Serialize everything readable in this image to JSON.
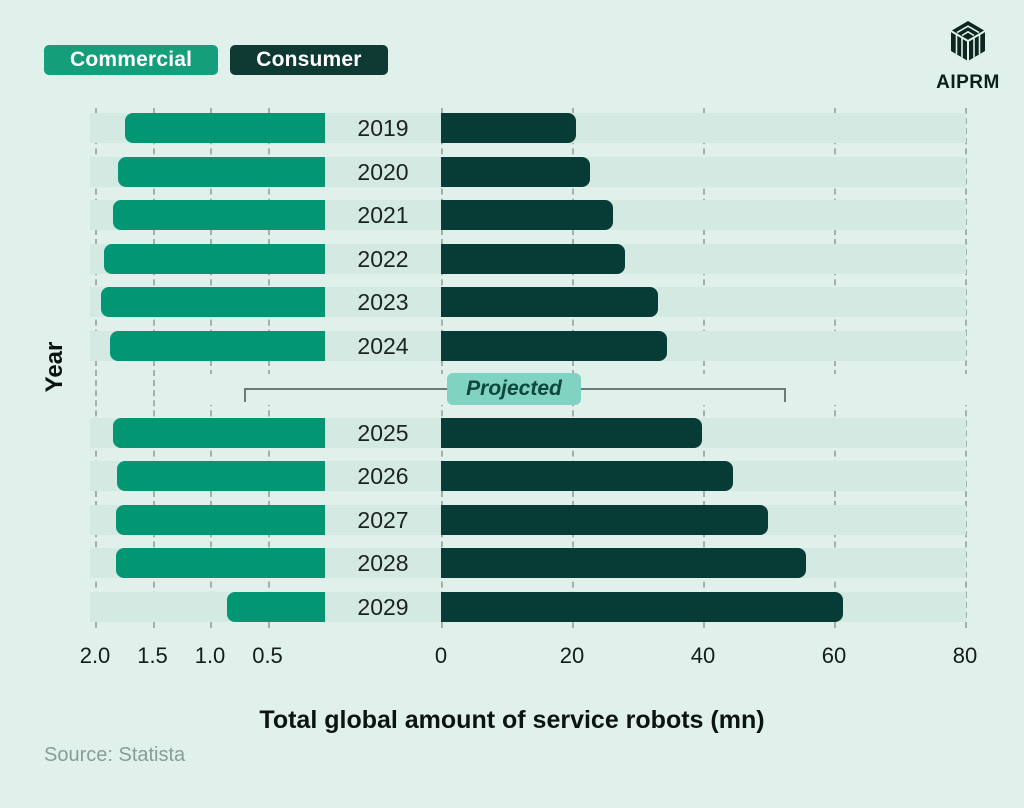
{
  "colors": {
    "background": "#e0f1eb",
    "track": "#d5e9e3",
    "commercial": "#029673",
    "consumer": "#073b35",
    "legend_commercial": "#149e7a",
    "legend_consumer": "#0e3a33",
    "grid": "#a3b0ac",
    "bracket": "#6c7a76",
    "projected_badge_bg": "#80d3c0"
  },
  "legend": [
    {
      "label": "Commercial",
      "color": "#149e7a"
    },
    {
      "label": "Consumer",
      "color": "#0e3a33"
    }
  ],
  "logo": {
    "brand": "AIPRM"
  },
  "chart_data": {
    "type": "bar",
    "orientation": "horizontal-diverging",
    "title": "",
    "xlabel": "Total global amount of service robots (mn)",
    "ylabel": "Year",
    "categories": [
      "2019",
      "2020",
      "2021",
      "2022",
      "2023",
      "2024",
      "2025",
      "2026",
      "2027",
      "2028",
      "2029"
    ],
    "series": [
      {
        "name": "Commercial",
        "axis": "left",
        "values": [
          1.74,
          1.8,
          1.84,
          1.92,
          1.95,
          1.87,
          1.84,
          1.81,
          1.82,
          1.82,
          0.85
        ]
      },
      {
        "name": "Consumer",
        "axis": "right",
        "values": [
          20.6,
          22.7,
          26.2,
          28.1,
          33.1,
          34.5,
          39.8,
          44.6,
          49.9,
          55.7,
          61.3
        ]
      }
    ],
    "left_axis": {
      "tick_labels": [
        "2.0",
        "1.5",
        "1.0",
        "0.5"
      ],
      "range": [
        0,
        2.0
      ]
    },
    "right_axis": {
      "tick_labels": [
        "0",
        "20",
        "40",
        "60",
        "80"
      ],
      "range": [
        0,
        80
      ]
    },
    "projected": {
      "label": "Projected",
      "applies_to_years": [
        "2025",
        "2026",
        "2027",
        "2028",
        "2029"
      ]
    },
    "grid": "dashed-vertical",
    "legend_position": "top-left"
  },
  "footer": {
    "source": "Source: Statista"
  }
}
